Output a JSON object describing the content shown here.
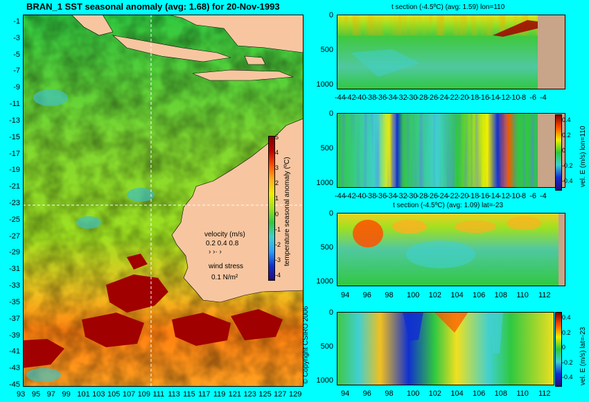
{
  "colors": {
    "background": "#00ffff",
    "land": "#f7c6a0",
    "land_section": "#c8a488",
    "colorscale": [
      "#2b0a7a",
      "#1030d0",
      "#2aa0ff",
      "#40d0d0",
      "#30c840",
      "#a0e020",
      "#f0f000",
      "#ffb020",
      "#ff5000",
      "#c00000",
      "#800000"
    ]
  },
  "copyright": "© Copyright CSIRO 2006",
  "velocity_legend": {
    "label": "velocity (m/s)",
    "values": "0.2 0.4 0.8",
    "wind_label": "wind stress",
    "wind_value": "0.1 N/m²"
  },
  "chart_data": [
    {
      "type": "heatmap",
      "title": "BRAN_1 SST seasonal anomaly (avg: 1.68) for 20-Nov-1993",
      "x_ticks": [
        "93",
        "95",
        "97",
        "99",
        "101",
        "103",
        "105",
        "107",
        "109",
        "111",
        "113",
        "115",
        "117",
        "119",
        "121",
        "123",
        "125",
        "127",
        "129"
      ],
      "y_ticks": [
        "-1",
        "-3",
        "-5",
        "-7",
        "-9",
        "-11",
        "-13",
        "-15",
        "-17",
        "-19",
        "-21",
        "-23",
        "-25",
        "-27",
        "-29",
        "-31",
        "-33",
        "-35",
        "-37",
        "-39",
        "-41",
        "-43",
        "-45"
      ],
      "xlim": [
        93,
        130
      ],
      "ylim": [
        -45,
        0
      ],
      "colorbar_label": "temperature seasonal anomaly (ºC)",
      "colorbar_ticks": [
        "5",
        "4",
        "3",
        "2",
        "1",
        "0",
        "-1",
        "-2",
        "-3",
        "-4"
      ],
      "crosshair": {
        "lon": 110,
        "lat": -23
      }
    },
    {
      "type": "heatmap",
      "title": "t section (-4.5ºC) (avg: 1.59) lon=110",
      "x_ticks": [
        "-44",
        "-42",
        "-40",
        "-38",
        "-36",
        "-34",
        "-32",
        "-30",
        "-28",
        "-26",
        "-24",
        "-22",
        "-20",
        "-18",
        "-16",
        "-14",
        "-12",
        "-10",
        "-8",
        "-6",
        "-4"
      ],
      "y_ticks": [
        "0",
        "500",
        "1000"
      ]
    },
    {
      "type": "heatmap",
      "title": "",
      "x_ticks": [
        "-44",
        "-42",
        "-40",
        "-38",
        "-36",
        "-34",
        "-32",
        "-30",
        "-28",
        "-26",
        "-24",
        "-22",
        "-20",
        "-18",
        "-16",
        "-14",
        "-12",
        "-10",
        "-8",
        "-6",
        "-4"
      ],
      "y_ticks": [
        "0",
        "500",
        "1000"
      ],
      "colorbar_label": "vel. E (m/s) lon=110",
      "colorbar_ticks": [
        "0.4",
        "0.2",
        "0",
        "-0.2",
        "-0.4"
      ]
    },
    {
      "type": "heatmap",
      "title": "t section (-4.5ºC) (avg: 1.09) lat=-23",
      "x_ticks": [
        "94",
        "96",
        "98",
        "100",
        "102",
        "104",
        "106",
        "108",
        "110",
        "112"
      ],
      "y_ticks": [
        "0",
        "500",
        "1000"
      ]
    },
    {
      "type": "heatmap",
      "title": "",
      "x_ticks": [
        "94",
        "96",
        "98",
        "100",
        "102",
        "104",
        "106",
        "108",
        "110",
        "112"
      ],
      "y_ticks": [
        "0",
        "500",
        "1000"
      ],
      "colorbar_label": "vel. E (m/s) lat=-23",
      "colorbar_ticks": [
        "0.4",
        "0.2",
        "0",
        "-0.2",
        "-0.4"
      ]
    }
  ]
}
